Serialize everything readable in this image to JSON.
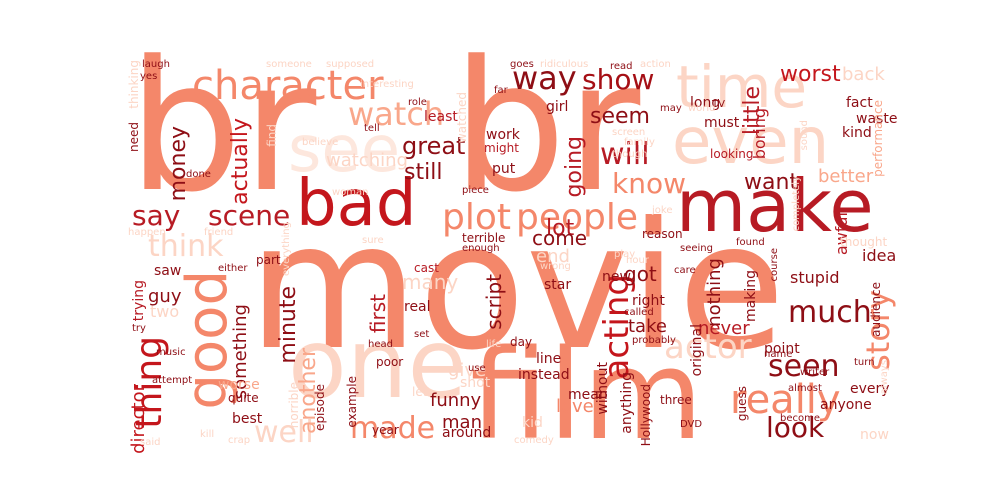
{
  "word_cloud": {
    "words": [
      {
        "text": "br",
        "color": "#f4876a"
      },
      {
        "text": "br",
        "color": "#f4876a"
      },
      {
        "text": "movie",
        "color": "#f4876a"
      },
      {
        "text": "film",
        "color": "#f4876a"
      },
      {
        "text": "one",
        "color": "#fcd5c5"
      },
      {
        "text": "make",
        "color": "#b71b24"
      },
      {
        "text": "bad",
        "color": "#c4161c"
      },
      {
        "text": "even",
        "color": "#fcd5c5"
      },
      {
        "text": "see",
        "color": "#fde7dd"
      },
      {
        "text": "time",
        "color": "#fcd5c5"
      },
      {
        "text": "character",
        "color": "#f4876a"
      },
      {
        "text": "good",
        "color": "#f4876a"
      },
      {
        "text": "people",
        "color": "#f4876a"
      },
      {
        "text": "plot",
        "color": "#f4876a"
      },
      {
        "text": "really",
        "color": "#f4876a"
      },
      {
        "text": "way",
        "color": "#8e0e15"
      },
      {
        "text": "show",
        "color": "#a50f15"
      },
      {
        "text": "scene",
        "color": "#b71b24"
      },
      {
        "text": "say",
        "color": "#b71b24"
      },
      {
        "text": "thing",
        "color": "#c4161c"
      },
      {
        "text": "acting",
        "color": "#c4161c"
      },
      {
        "text": "story",
        "color": "#f4876a"
      },
      {
        "text": "know",
        "color": "#f4876a"
      },
      {
        "text": "will",
        "color": "#b71b24"
      },
      {
        "text": "watch",
        "color": "#f9a78b"
      },
      {
        "text": "much",
        "color": "#8e0e15"
      },
      {
        "text": "seen",
        "color": "#8e0e15"
      },
      {
        "text": "look",
        "color": "#8e0e15"
      },
      {
        "text": "made",
        "color": "#f4876a"
      },
      {
        "text": "well",
        "color": "#fcd5c5"
      },
      {
        "text": "think",
        "color": "#fcd5c5"
      },
      {
        "text": "actor",
        "color": "#fcd5c5"
      },
      {
        "text": "worst",
        "color": "#c4161c"
      },
      {
        "text": "back",
        "color": "#fcd5c5"
      },
      {
        "text": "money",
        "color": "#8e0e15"
      },
      {
        "text": "actually",
        "color": "#c4161c"
      },
      {
        "text": "great",
        "color": "#8e0e15"
      },
      {
        "text": "still",
        "color": "#8e0e15"
      },
      {
        "text": "seem",
        "color": "#8e0e15"
      },
      {
        "text": "going",
        "color": "#b71b24"
      },
      {
        "text": "want",
        "color": "#8e0e15"
      },
      {
        "text": "better",
        "color": "#f9a78b"
      },
      {
        "text": "little",
        "color": "#b71b24"
      },
      {
        "text": "lot",
        "color": "#b71b24"
      },
      {
        "text": "come",
        "color": "#8e0e15"
      },
      {
        "text": "minute",
        "color": "#8e0e15"
      },
      {
        "text": "another",
        "color": "#f9a78b"
      },
      {
        "text": "something",
        "color": "#8e0e15"
      },
      {
        "text": "first",
        "color": "#b71b24"
      },
      {
        "text": "script",
        "color": "#8e0e15"
      },
      {
        "text": "got",
        "color": "#8e0e15"
      },
      {
        "text": "take",
        "color": "#8e0e15"
      },
      {
        "text": "never",
        "color": "#b71b24"
      },
      {
        "text": "funny",
        "color": "#8e0e15"
      },
      {
        "text": "man",
        "color": "#8e0e15"
      },
      {
        "text": "love",
        "color": "#f4876a"
      },
      {
        "text": "director",
        "color": "#c4161c"
      },
      {
        "text": "guy",
        "color": "#8e0e15"
      },
      {
        "text": "nothing",
        "color": "#8e0e15"
      },
      {
        "text": "awful",
        "color": "#b71b24"
      },
      {
        "text": "boring",
        "color": "#b71b24"
      },
      {
        "text": "fact",
        "color": "#8e0e15"
      },
      {
        "text": "waste",
        "color": "#8e0e15"
      },
      {
        "text": "idea",
        "color": "#8e0e15"
      },
      {
        "text": "stupid",
        "color": "#8e0e15"
      },
      {
        "text": "anyone",
        "color": "#8e0e15"
      },
      {
        "text": "every",
        "color": "#8e0e15"
      },
      {
        "text": "give",
        "color": "#fcd5c5"
      },
      {
        "text": "now",
        "color": "#fcd5c5"
      },
      {
        "text": "watching",
        "color": "#fcd5c5"
      },
      {
        "text": "girl",
        "color": "#8e0e15"
      },
      {
        "text": "work",
        "color": "#8e0e15"
      },
      {
        "text": "put",
        "color": "#8e0e15"
      },
      {
        "text": "might",
        "color": "#b71b24"
      },
      {
        "text": "least",
        "color": "#b71b24"
      },
      {
        "text": "many",
        "color": "#fcd5c5"
      },
      {
        "text": "end",
        "color": "#fcd5c5"
      },
      {
        "text": "cast",
        "color": "#b71b24"
      },
      {
        "text": "saw",
        "color": "#8e0e15"
      },
      {
        "text": "trying",
        "color": "#b71b24"
      },
      {
        "text": "reason",
        "color": "#8e0e15"
      },
      {
        "text": "terrible",
        "color": "#8e0e15"
      },
      {
        "text": "right",
        "color": "#8e0e15"
      },
      {
        "text": "new",
        "color": "#8e0e15"
      },
      {
        "text": "star",
        "color": "#8e0e15"
      },
      {
        "text": "original",
        "color": "#8e0e15"
      },
      {
        "text": "making",
        "color": "#8e0e15"
      },
      {
        "text": "without",
        "color": "#8e0e15"
      },
      {
        "text": "anything",
        "color": "#8e0e15"
      },
      {
        "text": "mean",
        "color": "#8e0e15"
      },
      {
        "text": "line",
        "color": "#8e0e15"
      },
      {
        "text": "instead",
        "color": "#8e0e15"
      },
      {
        "text": "around",
        "color": "#8e0e15"
      },
      {
        "text": "kid",
        "color": "#fcd5c5"
      },
      {
        "text": "shot",
        "color": "#fcd5c5"
      },
      {
        "text": "best",
        "color": "#8e0e15"
      },
      {
        "text": "point",
        "color": "#8e0e15"
      },
      {
        "text": "audience",
        "color": "#8e0e15"
      },
      {
        "text": "thought",
        "color": "#fcd5c5"
      },
      {
        "text": "must",
        "color": "#8e0e15"
      },
      {
        "text": "long",
        "color": "#8e0e15"
      },
      {
        "text": "kind",
        "color": "#8e0e15"
      },
      {
        "text": "performance",
        "color": "#f9a78b"
      },
      {
        "text": "looking",
        "color": "#b71b24"
      },
      {
        "text": "world",
        "color": "#fcd5c5"
      },
      {
        "text": "read",
        "color": "#8e0e15"
      },
      {
        "text": "screen",
        "color": "#fcd5c5"
      },
      {
        "text": "worse",
        "color": "#f9a78b"
      },
      {
        "text": "guess",
        "color": "#8e0e15"
      },
      {
        "text": "DVD",
        "color": "#8e0e15"
      },
      {
        "text": "three",
        "color": "#8e0e15"
      },
      {
        "text": "Hollywood",
        "color": "#8e0e15"
      },
      {
        "text": "quite",
        "color": "#8e0e15"
      },
      {
        "text": "episode",
        "color": "#8e0e15"
      },
      {
        "text": "year",
        "color": "#8e0e15"
      },
      {
        "text": "comedy",
        "color": "#fcd5c5"
      },
      {
        "text": "let",
        "color": "#fcd5c5"
      },
      {
        "text": "example",
        "color": "#8e0e15"
      },
      {
        "text": "poor",
        "color": "#8e0e15"
      },
      {
        "text": "real",
        "color": "#8e0e15"
      },
      {
        "text": "set",
        "color": "#8e0e15"
      },
      {
        "text": "music",
        "color": "#8e0e15"
      },
      {
        "text": "attempt",
        "color": "#8e0e15"
      },
      {
        "text": "try",
        "color": "#8e0e15"
      },
      {
        "text": "either",
        "color": "#8e0e15"
      },
      {
        "text": "two",
        "color": "#fcd5c5"
      },
      {
        "text": "part",
        "color": "#8e0e15"
      },
      {
        "text": "friend",
        "color": "#fcd5c5"
      },
      {
        "text": "happen",
        "color": "#fcd5c5"
      },
      {
        "text": "everything",
        "color": "#fcd5c5"
      },
      {
        "text": "need",
        "color": "#8e0e15"
      },
      {
        "text": "find",
        "color": "#fcd5c5"
      },
      {
        "text": "believe",
        "color": "#fcd5c5"
      },
      {
        "text": "tell",
        "color": "#8e0e15"
      },
      {
        "text": "role",
        "color": "#8e0e15"
      },
      {
        "text": "watched",
        "color": "#fcd5c5"
      },
      {
        "text": "laugh",
        "color": "#8e0e15"
      },
      {
        "text": "yes",
        "color": "#8e0e15"
      },
      {
        "text": "someone",
        "color": "#fcd5c5"
      },
      {
        "text": "supposed",
        "color": "#fcd5c5"
      },
      {
        "text": "interesting",
        "color": "#fcd5c5"
      },
      {
        "text": "goes",
        "color": "#8e0e15"
      },
      {
        "text": "ridiculous",
        "color": "#fcd5c5"
      },
      {
        "text": "far",
        "color": "#8e0e15"
      },
      {
        "text": "action",
        "color": "#fcd5c5"
      },
      {
        "text": "may",
        "color": "#8e0e15"
      },
      {
        "text": "TV",
        "color": "#8e0e15"
      },
      {
        "text": "sound",
        "color": "#fcd5c5"
      },
      {
        "text": "completely",
        "color": "#fcd5c5"
      },
      {
        "text": "course",
        "color": "#8e0e15"
      },
      {
        "text": "family",
        "color": "#fcd5c5"
      },
      {
        "text": "though",
        "color": "#fcd5c5"
      },
      {
        "text": "care",
        "color": "#8e0e15"
      },
      {
        "text": "seeing",
        "color": "#8e0e15"
      },
      {
        "text": "hour",
        "color": "#fcd5c5"
      },
      {
        "text": "found",
        "color": "#8e0e15"
      },
      {
        "text": "almost",
        "color": "#8e0e15"
      },
      {
        "text": "become",
        "color": "#8e0e15"
      },
      {
        "text": "writer",
        "color": "#8e0e15"
      },
      {
        "text": "turn",
        "color": "#8e0e15"
      },
      {
        "text": "always",
        "color": "#fcd5c5"
      },
      {
        "text": "name",
        "color": "#8e0e15"
      },
      {
        "text": "play",
        "color": "#fcd5c5"
      },
      {
        "text": "enough",
        "color": "#8e0e15"
      },
      {
        "text": "joke",
        "color": "#fcd5c5"
      },
      {
        "text": "piece",
        "color": "#8e0e15"
      },
      {
        "text": "called",
        "color": "#8e0e15"
      },
      {
        "text": "probably",
        "color": "#8e0e15"
      },
      {
        "text": "day",
        "color": "#8e0e15"
      },
      {
        "text": "woman",
        "color": "#fcd5c5"
      },
      {
        "text": "done",
        "color": "#8e0e15"
      },
      {
        "text": "said",
        "color": "#fcd5c5"
      },
      {
        "text": "kill",
        "color": "#fcd5c5"
      },
      {
        "text": "crap",
        "color": "#fcd5c5"
      },
      {
        "text": "head",
        "color": "#8e0e15"
      },
      {
        "text": "sure",
        "color": "#fcd5c5"
      },
      {
        "text": "use",
        "color": "#8e0e15"
      },
      {
        "text": "horrible",
        "color": "#fcd5c5"
      },
      {
        "text": "life",
        "color": "#fcd5c5"
      },
      {
        "text": "wrong",
        "color": "#fcd5c5"
      },
      {
        "text": "thinking",
        "color": "#fcd5c5"
      }
    ]
  }
}
